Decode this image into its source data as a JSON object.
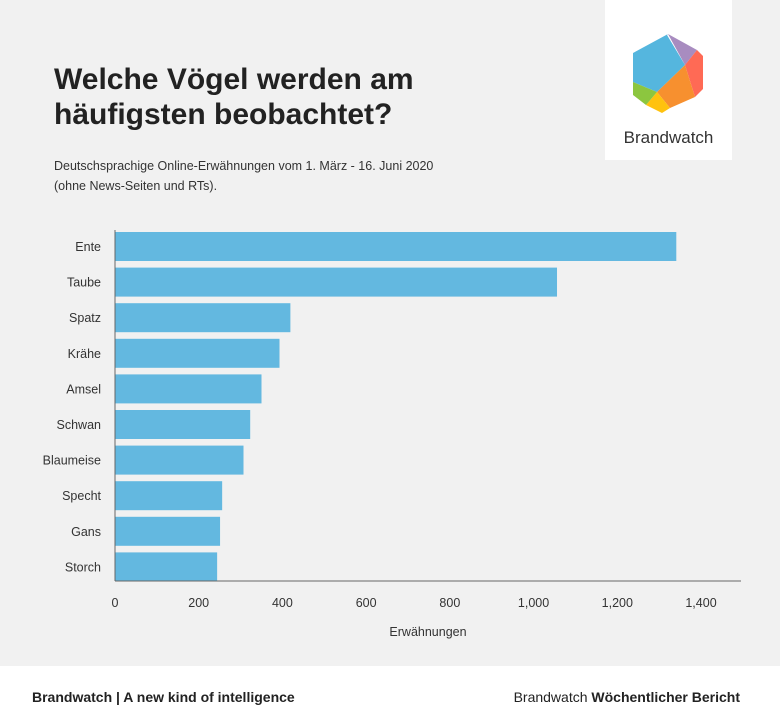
{
  "logo": {
    "text": "Brandwatch"
  },
  "footer": {
    "left": "Brandwatch | A new kind of intelligence",
    "right_normal": "Brandwatch",
    "right_bold": "Wöchentlicher Bericht"
  },
  "chart_data": {
    "type": "bar",
    "orientation": "horizontal",
    "title": "Welche Vögel werden am häufigsten beobachtet?",
    "subtitle_line1": "Deutschsprachige Online-Erwähnungen vom 1. März - 16. Juni 2020",
    "subtitle_line2": "(ohne News-Seiten und RTs).",
    "categories": [
      "Ente",
      "Taube",
      "Spatz",
      "Krähe",
      "Amsel",
      "Schwan",
      "Blaumeise",
      "Specht",
      "Gans",
      "Storch"
    ],
    "values": [
      1341,
      1056,
      419,
      393,
      350,
      323,
      307,
      256,
      251,
      244
    ],
    "xlabel": "Erwähnungen",
    "ylabel": "",
    "xlim": [
      0,
      1500
    ],
    "xticks": [
      "0",
      "200",
      "400",
      "600",
      "800",
      "1,000",
      "1,200",
      "1,400"
    ],
    "xtick_values": [
      0,
      200,
      400,
      600,
      800,
      1000,
      1200,
      1400
    ],
    "bar_color": "#63b8e0",
    "grid": false
  }
}
